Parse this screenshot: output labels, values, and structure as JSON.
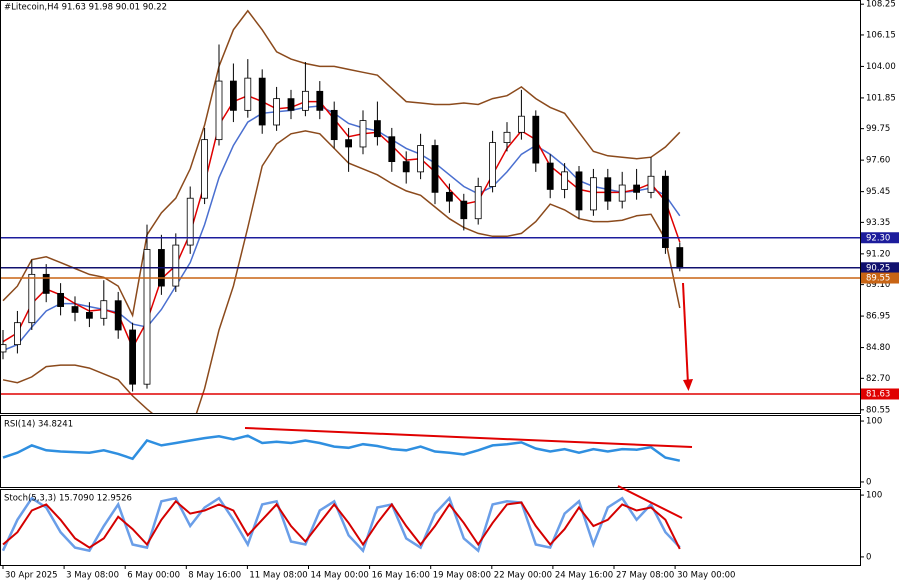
{
  "chart_data": [
    {
      "type": "candlestick",
      "title": "#Litecoin,H4  91.63 91.98 90.01 90.22",
      "open": [
        84.5,
        85.0,
        86.5,
        89.8,
        88.5,
        87.6,
        87.2,
        86.8,
        88.0,
        86.0,
        82.3,
        91.5,
        89.0,
        91.8,
        95.0,
        99.0,
        103.0,
        101.0,
        103.2,
        100.0,
        101.8,
        101.0,
        102.3,
        101.0,
        99.0,
        98.5,
        100.3,
        99.2,
        97.5,
        96.8,
        98.6,
        95.4,
        94.8,
        93.6,
        95.8,
        98.8,
        99.5,
        100.6,
        97.4,
        95.6,
        96.8,
        94.2,
        96.4,
        94.8,
        95.9,
        95.4,
        96.5,
        91.63
      ],
      "high": [
        86.0,
        87.3,
        90.8,
        90.5,
        89.2,
        88.3,
        87.9,
        89.4,
        88.6,
        86.5,
        93.2,
        92.5,
        92.6,
        95.8,
        99.8,
        105.5,
        104.2,
        104.5,
        103.8,
        102.6,
        102.4,
        104.3,
        103.0,
        101.6,
        99.8,
        101.0,
        101.6,
        99.8,
        98.2,
        99.4,
        99.0,
        96.0,
        95.3,
        96.4,
        99.6,
        100.2,
        102.4,
        101.0,
        98.0,
        97.4,
        97.2,
        97.0,
        97.0,
        96.8,
        97.0,
        97.8,
        96.9,
        91.98
      ],
      "low": [
        84.0,
        84.4,
        86.0,
        87.9,
        87.0,
        86.6,
        86.2,
        86.3,
        85.4,
        81.8,
        82.0,
        88.4,
        88.6,
        91.2,
        94.6,
        98.6,
        100.2,
        100.5,
        99.4,
        99.6,
        100.4,
        100.6,
        100.4,
        98.4,
        96.8,
        98.0,
        98.6,
        96.8,
        96.0,
        96.3,
        94.6,
        94.0,
        92.8,
        93.2,
        95.4,
        98.2,
        99.0,
        96.8,
        95.0,
        95.0,
        93.6,
        93.8,
        94.2,
        94.3,
        94.9,
        95.0,
        91.2,
        90.01
      ],
      "close": [
        85.0,
        86.5,
        89.8,
        88.5,
        87.6,
        87.2,
        86.8,
        88.0,
        86.0,
        82.3,
        91.5,
        89.0,
        91.8,
        95.0,
        99.0,
        103.0,
        101.0,
        103.2,
        100.0,
        101.8,
        101.0,
        102.3,
        101.0,
        99.0,
        98.5,
        100.3,
        99.2,
        97.5,
        96.8,
        98.6,
        95.4,
        94.8,
        93.6,
        95.8,
        98.8,
        99.5,
        100.6,
        97.4,
        95.6,
        96.8,
        94.2,
        96.4,
        94.8,
        95.9,
        95.4,
        96.5,
        91.63,
        90.22
      ],
      "overlays": [
        {
          "color": "#8b4a1c",
          "values": [
            88.0,
            89.0,
            90.8,
            91.0,
            90.6,
            90.2,
            89.8,
            89.6,
            89.0,
            87.0,
            92.5,
            94.0,
            95.0,
            97.0,
            100.0,
            104.0,
            106.5,
            107.8,
            106.5,
            105.0,
            104.5,
            104.2,
            104.0,
            104.0,
            103.8,
            103.6,
            103.4,
            102.5,
            101.6,
            101.5,
            101.4,
            101.4,
            101.5,
            101.4,
            101.8,
            102.0,
            102.6,
            101.8,
            101.2,
            100.8,
            99.5,
            98.2,
            97.9,
            97.8,
            97.7,
            97.8,
            98.5,
            99.5
          ]
        },
        {
          "color": "#8b4a1c",
          "values": [
            82.6,
            82.4,
            82.8,
            83.5,
            83.6,
            83.6,
            83.4,
            83.0,
            82.6,
            81.5,
            80.6,
            79.8,
            79.2,
            79.0,
            82.0,
            86.0,
            89.0,
            93.0,
            97.2,
            98.7,
            99.4,
            99.6,
            99.4,
            98.4,
            97.4,
            97.0,
            96.6,
            96.0,
            95.5,
            95.2,
            94.4,
            93.6,
            93.0,
            92.6,
            92.4,
            92.4,
            92.6,
            93.4,
            94.6,
            94.2,
            93.6,
            93.4,
            93.4,
            93.5,
            93.8,
            93.9,
            92.2,
            87.5
          ]
        },
        {
          "color": "#4a6fd0",
          "values": [
            84.6,
            85.0,
            86.2,
            87.3,
            87.8,
            87.8,
            87.6,
            87.4,
            87.2,
            86.4,
            86.2,
            87.4,
            89.0,
            90.6,
            93.2,
            96.4,
            98.6,
            100.2,
            100.8,
            100.9,
            101.0,
            101.2,
            101.3,
            100.8,
            100.1,
            99.8,
            99.6,
            99.0,
            98.4,
            98.0,
            97.4,
            96.6,
            95.8,
            95.3,
            95.8,
            96.8,
            98.0,
            98.6,
            98.0,
            97.2,
            96.2,
            95.8,
            95.6,
            95.4,
            95.5,
            95.7,
            95.2,
            93.8
          ]
        },
        {
          "color": "#e00000",
          "values": [
            85.2,
            85.8,
            87.8,
            88.8,
            88.4,
            87.8,
            87.3,
            87.4,
            87.1,
            84.8,
            86.6,
            89.5,
            90.4,
            92.6,
            96.0,
            100.0,
            101.6,
            102.0,
            101.6,
            101.1,
            101.2,
            101.6,
            101.6,
            100.4,
            99.2,
            99.4,
            99.5,
            98.6,
            97.6,
            97.7,
            96.8,
            95.6,
            94.6,
            94.8,
            96.6,
            98.4,
            99.6,
            99.0,
            97.2,
            96.4,
            95.6,
            95.4,
            95.4,
            95.4,
            95.6,
            96.0,
            94.8,
            92.0
          ]
        }
      ],
      "levels": [
        {
          "value": 92.3,
          "label": "92.30",
          "color": "#1c1c9c"
        },
        {
          "value": 90.25,
          "label": "90.25",
          "color": "#10106e"
        },
        {
          "value": 89.55,
          "label": "89.55",
          "color": "#c86414"
        },
        {
          "value": 81.63,
          "label": "81.63",
          "color": "#e00000"
        }
      ],
      "ylim": [
        80.4,
        108.4
      ],
      "yticks": [
        108.25,
        106.15,
        {
          "value": 104,
          "label": "104.00"
        },
        101.85,
        99.75,
        {
          "value": 97.6,
          "label": "97.60"
        },
        95.45,
        93.35,
        {
          "value": 91.2,
          "label": "91.20"
        },
        {
          "value": 89.1,
          "label": "89.10"
        },
        86.95,
        {
          "value": 84.8,
          "label": "84.80"
        },
        {
          "value": 82.7,
          "label": "82.70"
        },
        80.55
      ],
      "x_labels": [
        "30 Apr 2025",
        "3 May 08:00",
        "6 May 00:00",
        "8 May 16:00",
        "11 May 08:00",
        "14 May 00:00",
        "16 May 16:00",
        "19 May 08:00",
        "22 May 00:00",
        "24 May 16:00",
        "27 May 08:00",
        "30 May 00:00"
      ]
    },
    {
      "type": "line",
      "title": "RSI(14) 34.8241",
      "series": [
        {
          "color": "#2f8fe0",
          "values": [
            40,
            48,
            60,
            52,
            50,
            49,
            48,
            52,
            46,
            38,
            68,
            60,
            64,
            68,
            72,
            75,
            70,
            76,
            64,
            66,
            64,
            68,
            64,
            58,
            56,
            62,
            59,
            54,
            52,
            58,
            50,
            48,
            45,
            52,
            60,
            62,
            65,
            55,
            50,
            54,
            48,
            54,
            50,
            54,
            53,
            57,
            40,
            34.8241
          ]
        }
      ],
      "ylim": [
        -5,
        105
      ],
      "yticks": [
        0,
        100
      ]
    },
    {
      "type": "line",
      "title": "Stoch(5,3,3) 15.7090 12.9526",
      "series": [
        {
          "color": "#6a9ee8",
          "values": [
            10,
            60,
            95,
            80,
            40,
            15,
            10,
            50,
            85,
            20,
            15,
            90,
            95,
            50,
            80,
            95,
            60,
            20,
            85,
            90,
            25,
            20,
            75,
            90,
            35,
            10,
            80,
            85,
            30,
            15,
            70,
            95,
            30,
            10,
            85,
            90,
            88,
            20,
            15,
            70,
            90,
            20,
            80,
            95,
            60,
            85,
            40,
            15.709
          ]
        },
        {
          "color": "#d40000",
          "values": [
            20,
            40,
            75,
            85,
            60,
            30,
            15,
            30,
            65,
            45,
            20,
            60,
            90,
            70,
            75,
            85,
            75,
            35,
            60,
            85,
            50,
            25,
            55,
            85,
            55,
            20,
            55,
            85,
            50,
            20,
            50,
            85,
            55,
            20,
            55,
            85,
            88,
            50,
            20,
            45,
            80,
            50,
            60,
            85,
            75,
            80,
            60,
            12.9526
          ]
        }
      ],
      "ylim": [
        -5,
        105
      ],
      "yticks": [
        0,
        100
      ]
    }
  ]
}
